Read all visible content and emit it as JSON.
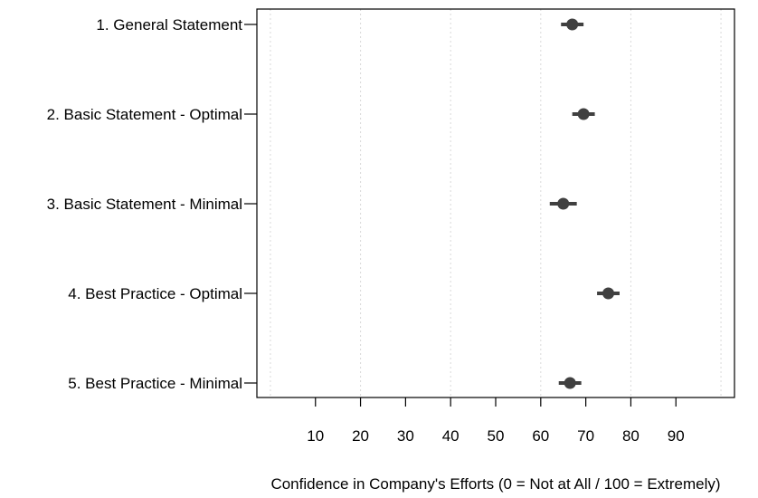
{
  "chart_data": {
    "type": "scatter",
    "subtype": "dot-and-whisker",
    "title": "",
    "xlabel": "Confidence in Company's Efforts (0 = Not at All / 100 = Extremely)",
    "ylabel": "",
    "xlim": [
      -3,
      103
    ],
    "xticks": [
      10,
      20,
      30,
      40,
      50,
      60,
      70,
      80,
      90
    ],
    "gridlines_at": [
      0,
      20,
      40,
      60,
      80,
      100
    ],
    "grid": "vertical dotted",
    "categories": [
      "1. General Statement",
      "2. Basic Statement - Optimal",
      "3. Basic Statement - Minimal",
      "4. Best Practice - Optimal",
      "5. Best Practice - Minimal"
    ],
    "series": [
      {
        "estimate": [
          67.0,
          69.5,
          65.0,
          75.0,
          66.5
        ],
        "ci_low": [
          64.5,
          67.0,
          62.0,
          72.5,
          64.0
        ],
        "ci_high": [
          69.5,
          72.0,
          68.0,
          77.5,
          69.0
        ]
      }
    ],
    "colors": {
      "marker": "#404040",
      "grid": "#d9d9d9",
      "frame": "#000000"
    }
  }
}
